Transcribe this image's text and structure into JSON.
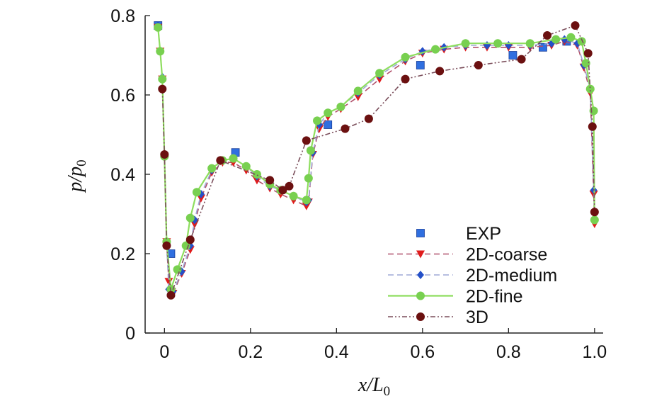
{
  "chart_data": {
    "type": "line",
    "xlabel": {
      "main": "x/L",
      "sub": "0"
    },
    "ylabel": {
      "main": "p/p",
      "sub": "0"
    },
    "xlim": [
      -0.045,
      1.02
    ],
    "ylim": [
      0,
      0.8
    ],
    "xticks": [
      "0",
      "0.2",
      "0.4",
      "0.6",
      "0.8",
      "1.0"
    ],
    "xtick_values": [
      0,
      0.2,
      0.4,
      0.6,
      0.8,
      1.0
    ],
    "yticks": [
      "0",
      "0.2",
      "0.4",
      "0.6",
      "0.8"
    ],
    "ytick_values": [
      0,
      0.2,
      0.4,
      0.6,
      0.8
    ],
    "legend_position": "bottom-right",
    "series": [
      {
        "name": "EXP",
        "style": "markers",
        "marker": "square",
        "color": "#2f6fe0",
        "x": [
          -0.015,
          0.015,
          0.165,
          0.38,
          0.595,
          0.81,
          0.88,
          0.935
        ],
        "y": [
          0.775,
          0.2,
          0.455,
          0.525,
          0.675,
          0.7,
          0.72,
          0.735
        ]
      },
      {
        "name": "2D-coarse",
        "style": "dashed",
        "marker": "triangle-down",
        "color": "#e01b1b",
        "line_color": "#b0506a",
        "x": [
          -0.015,
          -0.01,
          -0.005,
          0.0,
          0.005,
          0.01,
          0.02,
          0.04,
          0.06,
          0.07,
          0.085,
          0.11,
          0.135,
          0.16,
          0.19,
          0.215,
          0.245,
          0.27,
          0.3,
          0.33,
          0.335,
          0.345,
          0.36,
          0.38,
          0.41,
          0.45,
          0.5,
          0.56,
          0.6,
          0.65,
          0.7,
          0.75,
          0.8,
          0.85,
          0.9,
          0.93,
          0.96,
          0.975,
          0.99,
          0.998,
          1.0
        ],
        "y": [
          0.77,
          0.71,
          0.64,
          0.445,
          0.23,
          0.13,
          0.1,
          0.15,
          0.21,
          0.275,
          0.34,
          0.405,
          0.43,
          0.43,
          0.41,
          0.385,
          0.365,
          0.35,
          0.335,
          0.32,
          0.33,
          0.45,
          0.515,
          0.545,
          0.565,
          0.595,
          0.64,
          0.685,
          0.705,
          0.715,
          0.72,
          0.72,
          0.72,
          0.72,
          0.725,
          0.735,
          0.725,
          0.67,
          0.605,
          0.35,
          0.275
        ]
      },
      {
        "name": "2D-medium",
        "style": "dashed",
        "marker": "diamond",
        "color": "#2450c8",
        "line_color": "#9fa8d6",
        "x": [
          -0.015,
          -0.01,
          -0.005,
          0.0,
          0.005,
          0.01,
          0.02,
          0.04,
          0.06,
          0.07,
          0.085,
          0.11,
          0.135,
          0.16,
          0.19,
          0.215,
          0.245,
          0.27,
          0.3,
          0.33,
          0.335,
          0.345,
          0.36,
          0.38,
          0.41,
          0.45,
          0.5,
          0.56,
          0.6,
          0.65,
          0.7,
          0.75,
          0.8,
          0.85,
          0.9,
          0.93,
          0.96,
          0.975,
          0.99,
          0.998,
          1.0
        ],
        "y": [
          0.775,
          0.71,
          0.645,
          0.445,
          0.23,
          0.11,
          0.105,
          0.155,
          0.22,
          0.285,
          0.35,
          0.41,
          0.435,
          0.44,
          0.42,
          0.395,
          0.37,
          0.36,
          0.345,
          0.33,
          0.335,
          0.455,
          0.525,
          0.555,
          0.57,
          0.605,
          0.65,
          0.69,
          0.71,
          0.72,
          0.725,
          0.725,
          0.725,
          0.725,
          0.73,
          0.74,
          0.73,
          0.675,
          0.615,
          0.36,
          0.285
        ]
      },
      {
        "name": "2D-fine",
        "style": "solid",
        "marker": "circle",
        "color": "#78d050",
        "line_color": "#8ede5e",
        "x": [
          -0.015,
          -0.01,
          -0.005,
          0.0,
          0.005,
          0.015,
          0.03,
          0.05,
          0.06,
          0.075,
          0.11,
          0.135,
          0.16,
          0.19,
          0.215,
          0.245,
          0.27,
          0.3,
          0.33,
          0.335,
          0.34,
          0.355,
          0.38,
          0.41,
          0.45,
          0.5,
          0.56,
          0.63,
          0.7,
          0.775,
          0.85,
          0.91,
          0.945,
          0.97,
          0.98,
          0.99,
          0.998,
          1.0
        ],
        "y": [
          0.77,
          0.71,
          0.64,
          0.445,
          0.23,
          0.11,
          0.16,
          0.22,
          0.29,
          0.355,
          0.415,
          0.435,
          0.44,
          0.42,
          0.4,
          0.375,
          0.36,
          0.345,
          0.335,
          0.39,
          0.46,
          0.535,
          0.555,
          0.57,
          0.61,
          0.655,
          0.695,
          0.715,
          0.73,
          0.73,
          0.73,
          0.74,
          0.745,
          0.735,
          0.68,
          0.615,
          0.56,
          0.285
        ]
      },
      {
        "name": "3D",
        "style": "dash-dot-dot",
        "marker": "circle",
        "color": "#6b1010",
        "line_color": "#7a4d5a",
        "x": [
          -0.005,
          0.0,
          0.005,
          0.015,
          0.06,
          0.13,
          0.245,
          0.275,
          0.29,
          0.33,
          0.42,
          0.475,
          0.56,
          0.64,
          0.73,
          0.83,
          0.89,
          0.955,
          0.985,
          0.995,
          1.0
        ],
        "y": [
          0.615,
          0.45,
          0.22,
          0.095,
          0.235,
          0.435,
          0.385,
          0.36,
          0.37,
          0.485,
          0.515,
          0.54,
          0.64,
          0.66,
          0.675,
          0.69,
          0.75,
          0.775,
          0.705,
          0.52,
          0.305
        ]
      }
    ]
  }
}
